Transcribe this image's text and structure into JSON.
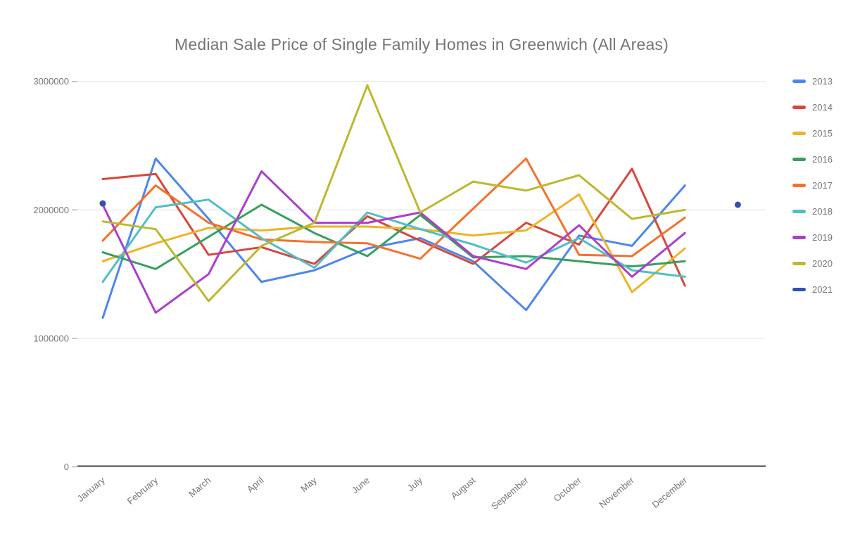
{
  "chart_data": {
    "type": "line",
    "title": "Median Sale Price of Single Family Homes in Greenwich (All Areas)",
    "title_color": "#757575",
    "grid": "horizontal",
    "legend_position": "right",
    "x_categories": [
      "January",
      "February",
      "March",
      "April",
      "May",
      "June",
      "July",
      "August",
      "September",
      "October",
      "November",
      "December"
    ],
    "y_axis": {
      "min": 0,
      "max": 3050000,
      "tick_values": [
        0,
        1000000,
        2000000,
        3000000
      ],
      "tick_labels": [
        "0",
        "1000000",
        "2000000",
        "3000000"
      ]
    },
    "series": [
      {
        "name": "2013",
        "color": "#4E86EC",
        "values": [
          1160000,
          2400000,
          1930000,
          1440000,
          1530000,
          1700000,
          1780000,
          1600000,
          1220000,
          1800000,
          1720000,
          2190000
        ]
      },
      {
        "name": "2014",
        "color": "#D5483B",
        "values": [
          2240000,
          2280000,
          1650000,
          1710000,
          1580000,
          1950000,
          1760000,
          1580000,
          1900000,
          1730000,
          2320000,
          1410000
        ]
      },
      {
        "name": "2015",
        "color": "#EFB328",
        "values": [
          1600000,
          1740000,
          1860000,
          1840000,
          1870000,
          1870000,
          1850000,
          1800000,
          1840000,
          2120000,
          1360000,
          1700000
        ]
      },
      {
        "name": "2016",
        "color": "#36A05C",
        "values": [
          1670000,
          1540000,
          1790000,
          2040000,
          1820000,
          1640000,
          1960000,
          1630000,
          1640000,
          1600000,
          1560000,
          1600000
        ]
      },
      {
        "name": "2017",
        "color": "#F3722D",
        "values": [
          1760000,
          2190000,
          1900000,
          1770000,
          1750000,
          1740000,
          1620000,
          2010000,
          2400000,
          1650000,
          1640000,
          1940000
        ]
      },
      {
        "name": "2018",
        "color": "#50BEC8",
        "values": [
          1440000,
          2020000,
          2080000,
          1780000,
          1550000,
          1980000,
          1850000,
          1730000,
          1590000,
          1780000,
          1530000,
          1480000
        ]
      },
      {
        "name": "2019",
        "color": "#AC3FC9",
        "values": [
          2040000,
          1200000,
          1500000,
          2300000,
          1900000,
          1900000,
          1980000,
          1640000,
          1540000,
          1880000,
          1480000,
          1820000
        ]
      },
      {
        "name": "2020",
        "color": "#BCB831",
        "values": [
          1910000,
          1850000,
          1290000,
          1720000,
          1900000,
          2970000,
          1980000,
          2220000,
          2150000,
          2270000,
          1930000,
          2000000
        ]
      },
      {
        "name": "2021",
        "color": "#3450AF",
        "style": "points",
        "values": [
          2050000,
          null,
          null,
          null,
          null,
          null,
          null,
          null,
          null,
          null,
          null,
          null
        ]
      }
    ],
    "extra_points": [
      {
        "series": "2021",
        "slot": 12,
        "value": 2040000,
        "note": "isolated dot rendered one slot to the right of December"
      }
    ]
  }
}
